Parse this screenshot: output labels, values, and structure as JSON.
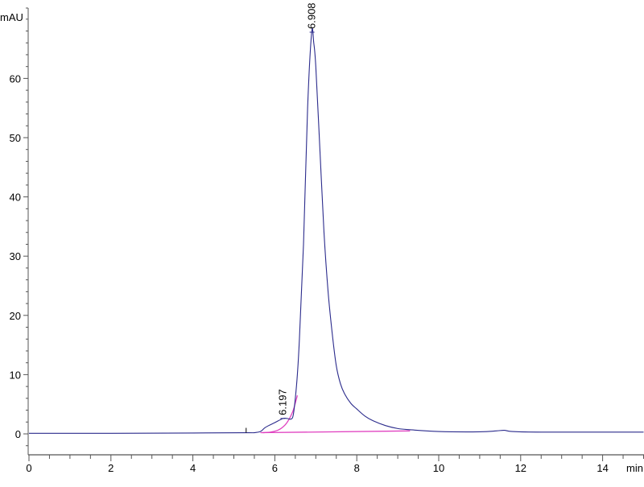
{
  "chart_data": {
    "type": "line",
    "title": "",
    "ylabel": "mAU",
    "xlabel": "min",
    "xlim": [
      0,
      15
    ],
    "ylim": [
      -3.5,
      72
    ],
    "x_ticks": [
      0,
      2,
      4,
      6,
      8,
      10,
      12,
      14
    ],
    "y_ticks": [
      0,
      10,
      20,
      30,
      40,
      50,
      60
    ],
    "grid": false,
    "colors": {
      "signal": "#2b2b8c",
      "fit": "#e040c0",
      "baseline": "#e040c0",
      "axis": "#555555"
    },
    "series": [
      {
        "role": "signal",
        "x": [
          0,
          2,
          4,
          5.3,
          5.5,
          5.65,
          5.75,
          5.85,
          6.0,
          6.2,
          6.3,
          6.4,
          6.45,
          6.5,
          6.55,
          6.6,
          6.7,
          6.8,
          6.9,
          6.95,
          7.0,
          7.1,
          7.2,
          7.3,
          7.4,
          7.5,
          7.6,
          7.7,
          7.85,
          8.0,
          8.2,
          8.4,
          8.7,
          9.0,
          9.3,
          10,
          11,
          11.4,
          11.6,
          11.8,
          12.5,
          15
        ],
        "y": [
          0.1,
          0.1,
          0.15,
          0.2,
          0.2,
          0.4,
          1.0,
          1.4,
          1.9,
          2.6,
          2.6,
          2.5,
          3.2,
          6,
          10,
          16,
          32,
          55,
          67.8,
          66,
          62,
          48,
          34,
          24,
          17,
          11.5,
          8.5,
          6.8,
          5.2,
          4.2,
          3.0,
          2.2,
          1.4,
          0.9,
          0.7,
          0.4,
          0.35,
          0.5,
          0.6,
          0.4,
          0.3,
          0.3
        ]
      },
      {
        "role": "fit",
        "x": [
          5.7,
          5.9,
          6.1,
          6.25,
          6.35,
          6.45,
          6.55
        ],
        "y": [
          0.2,
          0.3,
          0.7,
          1.5,
          2.5,
          4,
          6.5
        ]
      },
      {
        "role": "baseline",
        "x": [
          5.65,
          9.3
        ],
        "y": [
          0.2,
          0.5
        ]
      }
    ],
    "peak_labels": [
      {
        "x": 6.908,
        "y": 67.8,
        "text": "6.908"
      },
      {
        "x": 6.197,
        "y": 2.6,
        "text": "6.197"
      }
    ]
  }
}
